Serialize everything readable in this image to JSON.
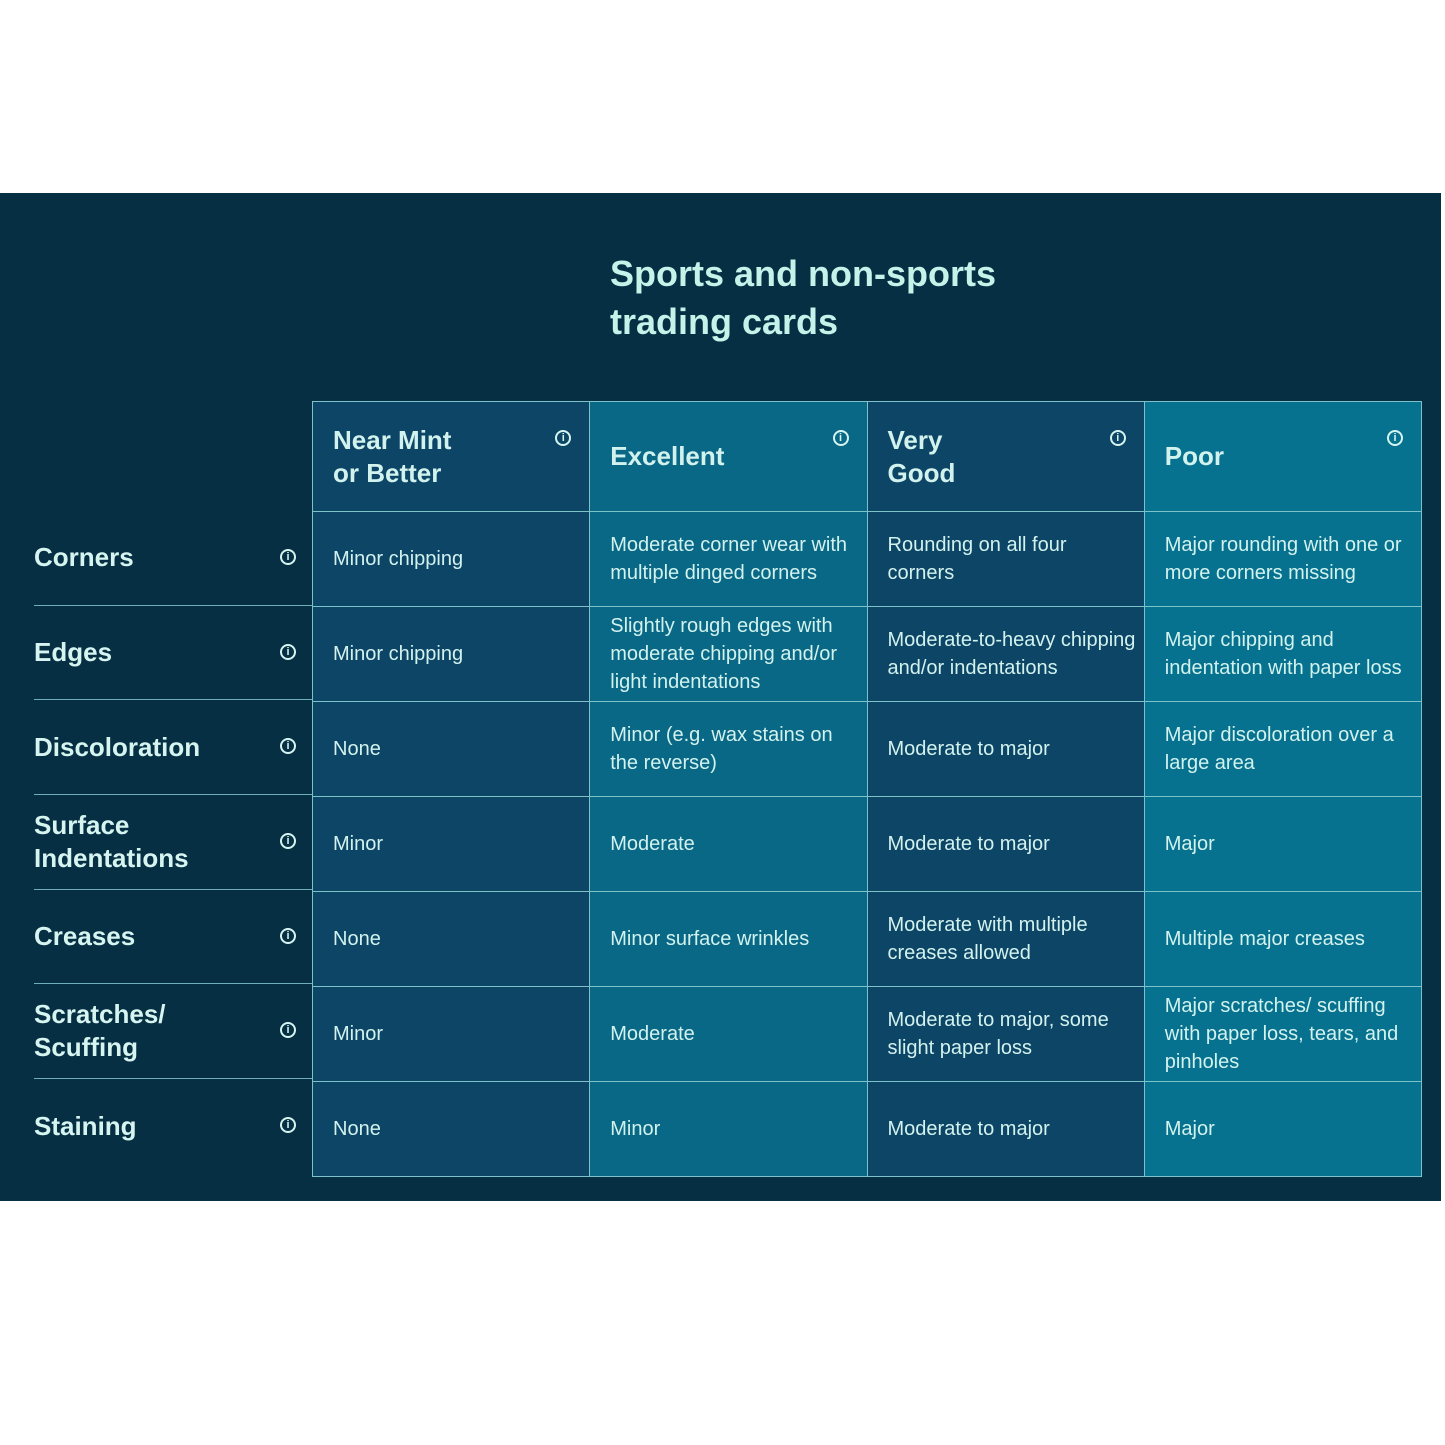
{
  "title": "Sports and non-sports\ntrading cards",
  "columns": [
    "Near Mint\nor Better",
    "Excellent",
    "Very\nGood",
    "Poor"
  ],
  "rows": [
    {
      "label": "Corners",
      "cells": [
        "Minor chipping",
        "Moderate corner wear with multiple dinged corners",
        "Rounding on all four corners",
        "Major rounding with one or more corners missing"
      ]
    },
    {
      "label": "Edges",
      "cells": [
        "Minor chipping",
        "Slightly rough edges with moderate chipping and/or light indentations",
        "Moderate-to-heavy chipping and/or indentations",
        "Major chipping and indentation with paper loss"
      ]
    },
    {
      "label": "Discoloration",
      "cells": [
        "None",
        "Minor (e.g. wax stains on the reverse)",
        "Moderate to major",
        "Major discoloration over a large area"
      ]
    },
    {
      "label": "Surface\nIndentations",
      "cells": [
        "Minor",
        "Moderate",
        "Moderate to major",
        "Major"
      ]
    },
    {
      "label": "Creases",
      "cells": [
        "None",
        "Minor surface wrinkles",
        "Moderate with multiple creases allowed",
        "Multiple major creases"
      ]
    },
    {
      "label": "Scratches/\nScuffing",
      "cells": [
        "Minor",
        "Moderate",
        "Moderate to major, some slight paper loss",
        "Major scratches/ scuffing with paper loss, tears, and pinholes"
      ]
    },
    {
      "label": "Staining",
      "cells": [
        "None",
        "Minor",
        "Moderate to major",
        "Major"
      ]
    }
  ],
  "icons": {
    "info": "info-circle-icon"
  },
  "colors": {
    "background": "#062f44",
    "col_dark": "#0d4566",
    "col_teal": "#0a6887",
    "col_poor": "#07728f",
    "text": "#d2f2ee"
  }
}
